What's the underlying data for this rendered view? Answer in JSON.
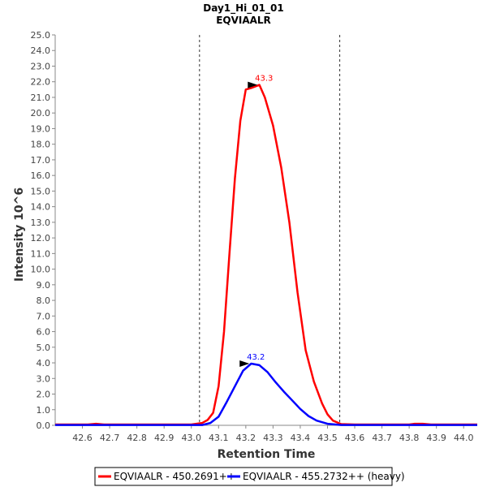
{
  "chart_data": {
    "type": "line",
    "title": "Day1_Hi_01_01",
    "subtitle": "EQVIAALR",
    "xlabel": "Retention Time",
    "ylabel": "Intensity 10^6",
    "xlim": [
      42.5,
      44.05
    ],
    "ylim": [
      0,
      25
    ],
    "x_ticks": [
      42.6,
      42.7,
      42.8,
      42.9,
      43.0,
      43.1,
      43.2,
      43.3,
      43.4,
      43.5,
      43.6,
      43.7,
      43.8,
      43.9,
      44.0
    ],
    "x_tick_labels": [
      "42.6",
      "42.7",
      "42.8",
      "42.9",
      "43.0",
      "43.1",
      "43.2",
      "43.3",
      "43.4",
      "43.5",
      "43.6",
      "43.7",
      "43.8",
      "43.9",
      "44.0"
    ],
    "y_ticks": [
      0,
      1,
      2,
      3,
      4,
      5,
      6,
      7,
      8,
      9,
      10,
      11,
      12,
      13,
      14,
      15,
      16,
      17,
      18,
      19,
      20,
      21,
      22,
      23,
      24,
      25
    ],
    "y_tick_labels": [
      "0.0",
      "1.0",
      "2.0",
      "3.0",
      "4.0",
      "5.0",
      "6.0",
      "7.0",
      "8.0",
      "9.0",
      "10.0",
      "11.0",
      "12.0",
      "13.0",
      "14.0",
      "15.0",
      "16.0",
      "17.0",
      "18.0",
      "19.0",
      "20.0",
      "21.0",
      "22.0",
      "23.0",
      "24.0",
      "25.0"
    ],
    "integration_bounds": [
      43.03,
      43.545
    ],
    "series": [
      {
        "name": "EQVIAALR - 450.2691++",
        "color": "#ff0000",
        "peak_label": "43.3",
        "peak": [
          43.255,
          21.8
        ],
        "x": [
          42.5,
          42.62,
          42.65,
          42.68,
          42.8,
          43.0,
          43.04,
          43.06,
          43.08,
          43.1,
          43.12,
          43.14,
          43.16,
          43.18,
          43.2,
          43.22,
          43.25,
          43.27,
          43.3,
          43.33,
          43.36,
          43.39,
          43.42,
          43.45,
          43.48,
          43.5,
          43.52,
          43.55,
          43.6,
          43.8,
          43.82,
          43.85,
          43.88,
          44.05
        ],
        "y": [
          0.05,
          0.05,
          0.1,
          0.05,
          0.05,
          0.05,
          0.15,
          0.35,
          0.8,
          2.5,
          6.0,
          11.0,
          15.8,
          19.5,
          21.5,
          21.6,
          21.8,
          21.0,
          19.2,
          16.5,
          13.0,
          8.5,
          4.8,
          2.8,
          1.4,
          0.7,
          0.3,
          0.08,
          0.05,
          0.05,
          0.1,
          0.1,
          0.05,
          0.05
        ]
      },
      {
        "name": "EQVIAALR - 455.2732++ (heavy)",
        "color": "#0000ff",
        "peak_label": "43.2",
        "peak": [
          43.225,
          3.95
        ],
        "x": [
          42.5,
          43.04,
          43.07,
          43.1,
          43.13,
          43.16,
          43.19,
          43.22,
          43.25,
          43.28,
          43.31,
          43.34,
          43.37,
          43.4,
          43.43,
          43.46,
          43.5,
          43.55,
          43.6,
          44.05
        ],
        "y": [
          0.02,
          0.02,
          0.15,
          0.55,
          1.5,
          2.5,
          3.5,
          3.95,
          3.85,
          3.4,
          2.75,
          2.15,
          1.6,
          1.05,
          0.6,
          0.3,
          0.1,
          0.02,
          0.02,
          0.02
        ]
      }
    ],
    "legend_position": "bottom"
  }
}
